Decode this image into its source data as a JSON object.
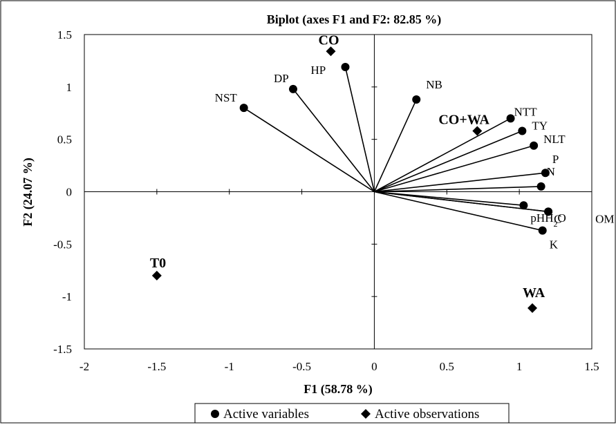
{
  "chart_data": {
    "type": "scatter",
    "title": "Biplot (axes F1 and F2: 82.85 %)",
    "xlabel": "F1 (58.78 %)",
    "ylabel": "F2 (24.07 %)",
    "xlim": [
      -2,
      1.5
    ],
    "ylim": [
      -1.5,
      1.5
    ],
    "x_ticks": [
      -2,
      -1.5,
      -1,
      -0.5,
      0,
      0.5,
      1,
      1.5
    ],
    "y_ticks": [
      -1.5,
      -1,
      -0.5,
      0,
      0.5,
      1,
      1.5
    ],
    "x_tick_labels": [
      "-2",
      "-1.5",
      "-1",
      "-0.5",
      "0",
      "0.5",
      "1",
      "1.5"
    ],
    "y_tick_labels": [
      "-1.5",
      "-1",
      "-0.5",
      "0",
      "0.5",
      "1",
      "1.5"
    ],
    "grid": false,
    "legend_position": "bottom",
    "legend": [
      {
        "marker": "circle",
        "label": "Active variables"
      },
      {
        "marker": "diamond",
        "label": "Active observations"
      }
    ],
    "variables": [
      {
        "name": "NST",
        "x": -0.9,
        "y": 0.8
      },
      {
        "name": "DP",
        "x": -0.56,
        "y": 0.98
      },
      {
        "name": "HP",
        "x": -0.2,
        "y": 1.19
      },
      {
        "name": "NB",
        "x": 0.29,
        "y": 0.88
      },
      {
        "name": "NTT",
        "x": 0.94,
        "y": 0.7
      },
      {
        "name": "TY",
        "x": 1.02,
        "y": 0.58
      },
      {
        "name": "NLT",
        "x": 1.1,
        "y": 0.44
      },
      {
        "name": "P",
        "x": 1.18,
        "y": 0.18
      },
      {
        "name": "N",
        "x": 1.15,
        "y": 0.05
      },
      {
        "name": "pHH2O",
        "x": 1.03,
        "y": -0.13
      },
      {
        "name": "C",
        "x": 1.2,
        "y": -0.19
      },
      {
        "name": "OM",
        "x": 1.2,
        "y": -0.19
      },
      {
        "name": "K",
        "x": 1.16,
        "y": -0.37
      }
    ],
    "observations": [
      {
        "name": "CO",
        "x": -0.3,
        "y": 1.34
      },
      {
        "name": "CO+WA",
        "x": 0.71,
        "y": 0.58
      },
      {
        "name": "T0",
        "x": -1.5,
        "y": -0.8
      },
      {
        "name": "WA",
        "x": 1.09,
        "y": -1.11
      }
    ]
  }
}
